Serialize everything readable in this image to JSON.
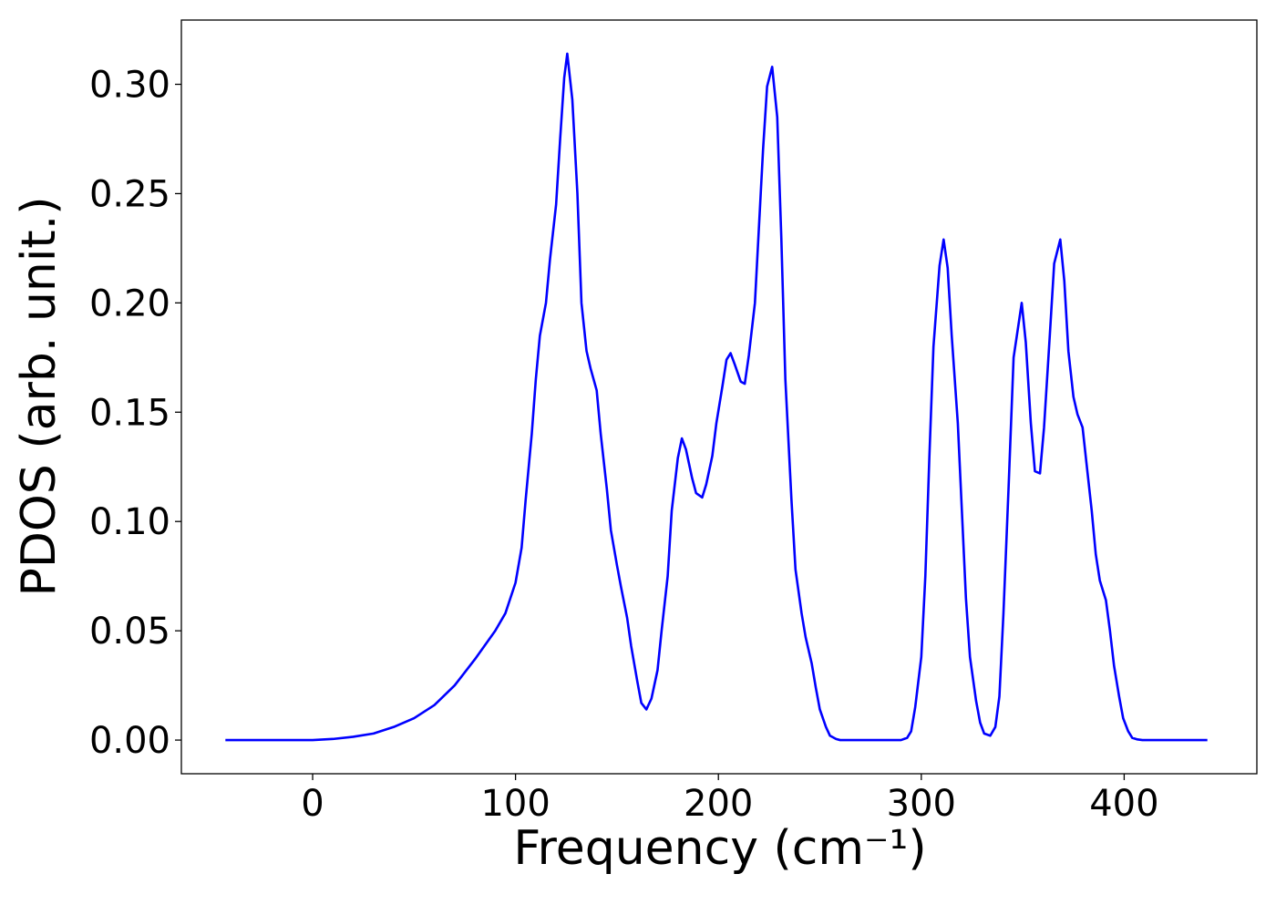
{
  "chart_data": {
    "type": "line",
    "xlabel": "Frequency (cm⁻¹)",
    "ylabel": "PDOS (arb. unit.)",
    "color": "#0000ff",
    "x": [
      -43,
      0,
      10,
      20,
      30,
      40,
      50,
      60,
      70,
      80,
      90,
      95,
      100,
      103,
      105,
      108,
      110,
      112,
      115,
      117,
      120,
      122,
      124,
      125.5,
      128,
      130.5,
      132.5,
      135,
      137,
      140,
      142,
      145,
      147,
      150,
      152,
      155,
      157,
      160,
      162,
      164.5,
      167,
      170,
      172,
      175,
      177,
      180,
      182,
      184,
      187,
      189,
      192,
      194,
      197,
      199,
      202,
      204,
      206,
      208,
      211,
      213,
      215,
      218,
      220,
      222,
      224,
      226.5,
      229,
      231,
      233,
      236,
      238,
      241,
      243,
      246,
      248,
      250,
      253,
      255,
      258,
      260,
      290,
      293,
      295,
      297,
      300,
      302,
      304,
      306,
      309,
      311,
      313,
      315,
      318,
      320,
      322,
      324,
      327,
      329,
      331,
      334,
      336.5,
      338.5,
      340.5,
      343,
      345.5,
      349.5,
      351.5,
      354,
      356,
      358.5,
      360.5,
      363,
      365.5,
      368.5,
      370.5,
      372.5,
      375,
      377,
      379.5,
      381.5,
      384,
      386,
      388,
      391,
      393,
      395,
      397.5,
      399.5,
      402,
      404,
      406.5,
      409,
      441
    ],
    "values": [
      0,
      0,
      0.0005,
      0.0015,
      0.003,
      0.006,
      0.01,
      0.016,
      0.025,
      0.037,
      0.05,
      0.058,
      0.072,
      0.088,
      0.11,
      0.14,
      0.165,
      0.185,
      0.2,
      0.22,
      0.245,
      0.275,
      0.303,
      0.314,
      0.293,
      0.25,
      0.2,
      0.178,
      0.17,
      0.16,
      0.14,
      0.115,
      0.096,
      0.08,
      0.07,
      0.056,
      0.043,
      0.027,
      0.017,
      0.014,
      0.019,
      0.032,
      0.05,
      0.075,
      0.105,
      0.129,
      0.138,
      0.133,
      0.12,
      0.113,
      0.111,
      0.117,
      0.13,
      0.145,
      0.162,
      0.174,
      0.177,
      0.172,
      0.164,
      0.163,
      0.176,
      0.2,
      0.235,
      0.27,
      0.299,
      0.308,
      0.285,
      0.23,
      0.165,
      0.11,
      0.078,
      0.058,
      0.047,
      0.035,
      0.024,
      0.014,
      0.006,
      0.002,
      0.0005,
      0,
      0,
      0.001,
      0.004,
      0.015,
      0.038,
      0.075,
      0.13,
      0.18,
      0.217,
      0.229,
      0.216,
      0.185,
      0.145,
      0.105,
      0.065,
      0.038,
      0.018,
      0.008,
      0.003,
      0.002,
      0.006,
      0.02,
      0.058,
      0.115,
      0.175,
      0.2,
      0.182,
      0.145,
      0.123,
      0.122,
      0.143,
      0.18,
      0.218,
      0.229,
      0.21,
      0.178,
      0.157,
      0.149,
      0.143,
      0.126,
      0.105,
      0.085,
      0.073,
      0.064,
      0.05,
      0.034,
      0.02,
      0.01,
      0.004,
      0.001,
      0.0003,
      0,
      0
    ],
    "xlim": [
      -64.7,
      465.4
    ],
    "xticks": [
      0,
      100,
      200,
      300,
      400
    ],
    "ylim": [
      -0.0154,
      0.3294
    ],
    "yticks": [
      {
        "value": 0,
        "label": "0.00"
      },
      {
        "value": 0.05,
        "label": "0.05"
      },
      {
        "value": 0.1,
        "label": "0.10"
      },
      {
        "value": 0.15,
        "label": "0.15"
      },
      {
        "value": 0.2,
        "label": "0.20"
      },
      {
        "value": 0.25,
        "label": "0.25"
      },
      {
        "value": 0.3,
        "label": "0.30"
      }
    ]
  }
}
